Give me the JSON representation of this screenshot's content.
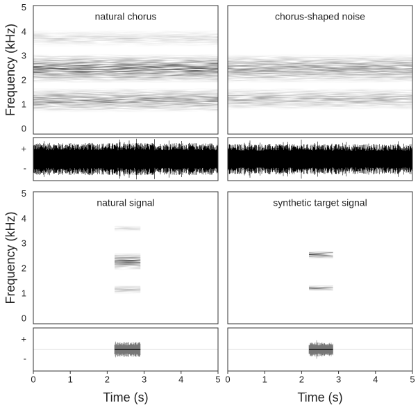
{
  "chart_data": [
    {
      "type": "spectrogram",
      "title": "natural chorus",
      "ylabel": "Frequency (kHz)",
      "xlim": [
        0,
        5
      ],
      "ylim": [
        -0.2,
        5.1
      ],
      "yticks": [
        0,
        1,
        2,
        3,
        4,
        5
      ],
      "time": [
        0,
        5
      ],
      "bands": [
        {
          "low": 0.7,
          "high": 1.7,
          "intensity": 0.55
        },
        {
          "low": 1.9,
          "high": 3.1,
          "intensity": 0.75
        },
        {
          "low": 3.4,
          "high": 4.1,
          "intensity": 0.2
        }
      ],
      "waveform": {
        "ylim": [
          -1,
          1
        ],
        "yticks": [
          {
            "value": 0.45,
            "label": "+"
          },
          {
            "value": -0.45,
            "label": "-"
          }
        ],
        "amplitude": 0.75
      }
    },
    {
      "type": "spectrogram",
      "title": "chorus-shaped noise",
      "xlim": [
        0,
        5
      ],
      "ylim": [
        -0.2,
        5.1
      ],
      "time": [
        0,
        5
      ],
      "bands": [
        {
          "low": 0.8,
          "high": 1.7,
          "intensity": 0.4
        },
        {
          "low": 1.9,
          "high": 3.1,
          "intensity": 0.55
        }
      ],
      "waveform": {
        "ylim": [
          -1,
          1
        ],
        "amplitude": 0.7
      }
    },
    {
      "type": "spectrogram",
      "title": "natural signal",
      "ylabel": "Frequency (kHz)",
      "xlabel": "Time (s)",
      "xlim": [
        0,
        5
      ],
      "xticks": [
        0,
        1,
        2,
        3,
        4,
        5
      ],
      "ylim": [
        -0.2,
        5.1
      ],
      "yticks": [
        0,
        1,
        2,
        3,
        4,
        5
      ],
      "time": [
        2.2,
        2.9
      ],
      "bands": [
        {
          "low": 1.0,
          "high": 1.35,
          "intensity": 0.35
        },
        {
          "low": 1.95,
          "high": 2.65,
          "intensity": 0.75
        },
        {
          "low": 3.5,
          "high": 3.75,
          "intensity": 0.2
        }
      ],
      "waveform": {
        "ylim": [
          -1,
          1
        ],
        "yticks": [
          {
            "value": 0.45,
            "label": "+"
          },
          {
            "value": -0.45,
            "label": "-"
          }
        ],
        "amplitude": 0.35
      }
    },
    {
      "type": "spectrogram",
      "title": "synthetic target signal",
      "xlabel": "Time (s)",
      "xlim": [
        0,
        5
      ],
      "xticks": [
        0,
        1,
        2,
        3,
        4,
        5
      ],
      "ylim": [
        -0.2,
        5.1
      ],
      "time": [
        2.2,
        2.85
      ],
      "bands": [
        {
          "low": 1.12,
          "high": 1.35,
          "intensity": 0.7
        },
        {
          "low": 2.42,
          "high": 2.72,
          "intensity": 0.9
        }
      ],
      "waveform": {
        "ylim": [
          -1,
          1
        ],
        "amplitude": 0.33
      }
    }
  ]
}
